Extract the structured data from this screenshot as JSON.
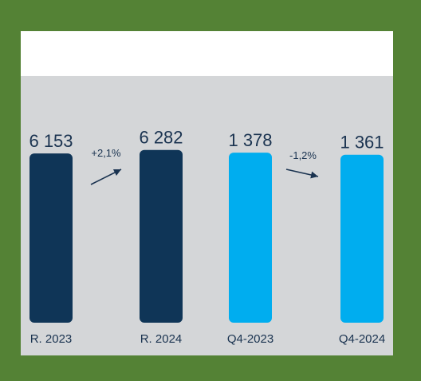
{
  "chart_data": {
    "type": "bar",
    "categories": [
      "R. 2023",
      "R. 2024",
      "Q4-2023",
      "Q4-2024"
    ],
    "values": [
      6153,
      6282,
      1378,
      1361
    ],
    "value_labels": [
      "6 153",
      "6 282",
      "1 378",
      "1 361"
    ],
    "groups": [
      {
        "categories": [
          0,
          1
        ],
        "ylim": [
          0,
          7000
        ],
        "color": "#0f3557"
      },
      {
        "categories": [
          2,
          3
        ],
        "ylim": [
          0,
          1560
        ],
        "color": "#00adef"
      }
    ],
    "annotations": [
      {
        "between": [
          0,
          1
        ],
        "text": "+2,1%",
        "direction": "up"
      },
      {
        "between": [
          2,
          3
        ],
        "text": "-1,2%",
        "direction": "down"
      }
    ],
    "title": "",
    "xlabel": "",
    "ylabel": "",
    "grid": false,
    "legend": "none"
  },
  "colors": {
    "background": "#548235",
    "panel": "#d4d6d8",
    "panel_top": "#ffffff",
    "text": "#1a3350",
    "arrow": "#1a3350"
  }
}
